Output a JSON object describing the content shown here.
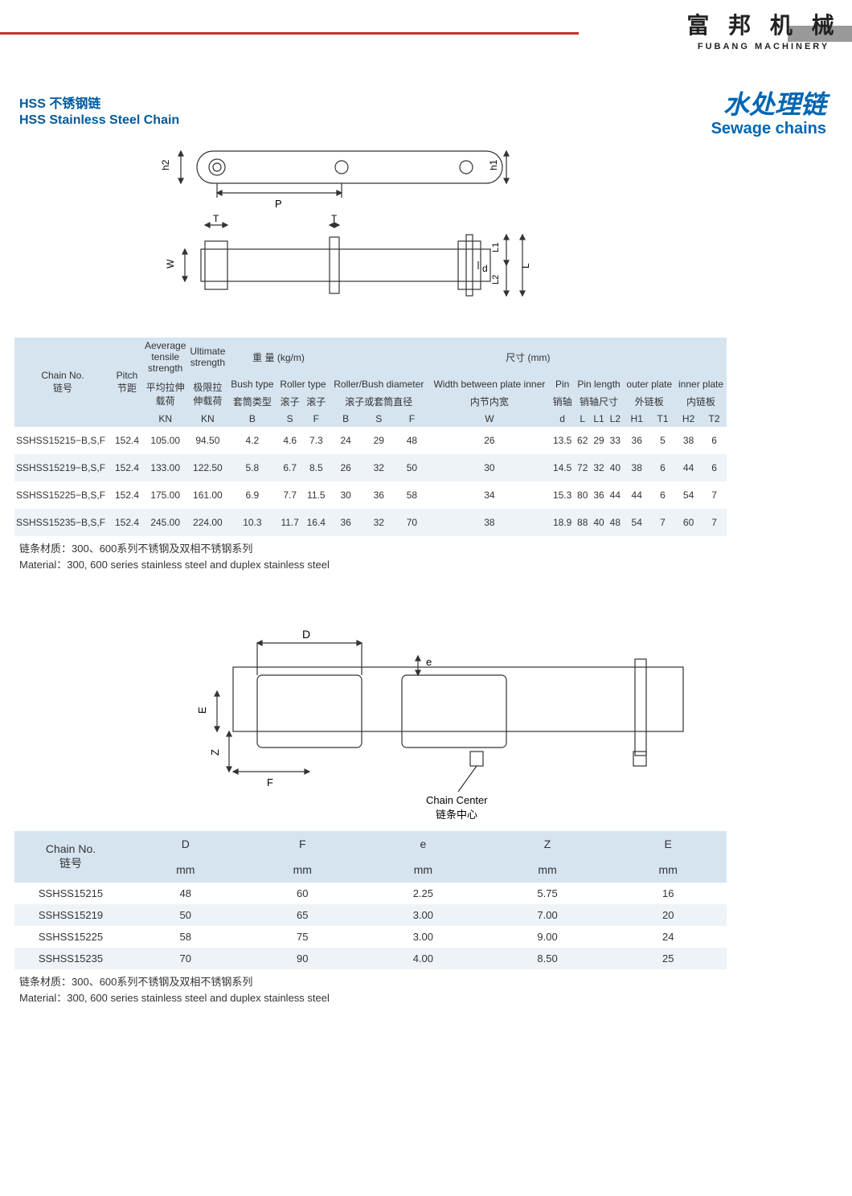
{
  "brand": {
    "cn": "富 邦 机 械",
    "en": "FUBANG MACHINERY"
  },
  "title_left": {
    "cn": "HSS 不锈钢链",
    "en": "HSS Stainless Steel Chain"
  },
  "title_right": {
    "cn": "水处理链",
    "en": "Sewage chains"
  },
  "diagram1": {
    "labels": {
      "h2": "h2",
      "h1": "h1",
      "P": "P",
      "T": "T",
      "T2": "T",
      "W": "W",
      "d": "d",
      "L": "L",
      "L1": "L1",
      "L2": "L2"
    },
    "colors": {
      "stroke": "#333333",
      "fill": "#ffffff"
    }
  },
  "diagram2": {
    "labels": {
      "D": "D",
      "e": "e",
      "E": "E",
      "Z": "Z",
      "F": "F",
      "center_en": "Chain Center",
      "center_cn": "链条中心"
    },
    "colors": {
      "stroke": "#333333",
      "fill": "#ffffff"
    }
  },
  "table1": {
    "header": {
      "chain_no": "Chain No.",
      "chain_no_cn": "链号",
      "pitch": "Pitch",
      "pitch_cn": "节距",
      "avg_ts": "Aeverage tensile strength",
      "ult_ts": "Ultimate strength",
      "avg_cn": "平均拉伸载荷",
      "ult_cn": "极限拉伸载荷",
      "weight": "重 量  (kg/m)",
      "bush": "Bush type",
      "bush_cn": "套筒类型",
      "roller": "Roller type",
      "roller_cn1": "滚子",
      "roller_cn2": "滚子",
      "dim": "尺寸  (mm)",
      "rbd": "Roller/Bush diameter",
      "rbd_cn": "滚子或套筒直径",
      "wbpi": "Width between plate inner",
      "wbpi_cn": "内节内宽",
      "pin": "Pin",
      "pin_cn": "销轴",
      "pinlen": "Pin length",
      "pinlen_cn": "销轴尺寸",
      "outer": "outer plate",
      "outer_cn": "外链板",
      "inner": "inner plate",
      "inner_cn": "内链板",
      "KN": "KN",
      "B": "B",
      "S": "S",
      "F": "F",
      "W": "W",
      "d": "d",
      "L": "L",
      "L1": "L1",
      "L2": "L2",
      "H1": "H1",
      "T1": "T1",
      "H2": "H2",
      "T2": "T2"
    },
    "rows": [
      {
        "no": "SSHSS15215−B,S,F",
        "pitch": "152.4",
        "avg": "105.00",
        "ult": "94.50",
        "wB": "4.2",
        "wS": "4.6",
        "wF": "7.3",
        "dB": "24",
        "dS": "29",
        "dF": "48",
        "W": "26",
        "d": "13.5",
        "L": "62",
        "L1": "29",
        "L2": "33",
        "H1": "36",
        "T1": "5",
        "H2": "38",
        "T2": "6"
      },
      {
        "no": "SSHSS15219−B,S,F",
        "pitch": "152.4",
        "avg": "133.00",
        "ult": "122.50",
        "wB": "5.8",
        "wS": "6.7",
        "wF": "8.5",
        "dB": "26",
        "dS": "32",
        "dF": "50",
        "W": "30",
        "d": "14.5",
        "L": "72",
        "L1": "32",
        "L2": "40",
        "H1": "38",
        "T1": "6",
        "H2": "44",
        "T2": "6"
      },
      {
        "no": "SSHSS15225−B,S,F",
        "pitch": "152.4",
        "avg": "175.00",
        "ult": "161.00",
        "wB": "6.9",
        "wS": "7.7",
        "wF": "11.5",
        "dB": "30",
        "dS": "36",
        "dF": "58",
        "W": "34",
        "d": "15.3",
        "L": "80",
        "L1": "36",
        "L2": "44",
        "H1": "44",
        "T1": "6",
        "H2": "54",
        "T2": "7"
      },
      {
        "no": "SSHSS15235−B,S,F",
        "pitch": "152.4",
        "avg": "245.00",
        "ult": "224.00",
        "wB": "10.3",
        "wS": "11.7",
        "wF": "16.4",
        "dB": "36",
        "dS": "32",
        "dF": "70",
        "W": "38",
        "d": "18.9",
        "L": "88",
        "L1": "40",
        "L2": "48",
        "H1": "54",
        "T1": "7",
        "H2": "60",
        "T2": "7"
      }
    ]
  },
  "note": {
    "cn": "链条材质：300、600系列不锈钢及双相不锈钢系列",
    "en": "Material：300, 600 series stainless steel and duplex stainless steel"
  },
  "table2": {
    "header": {
      "chain_no": "Chain No.",
      "chain_no_cn": "链号",
      "D": "D",
      "F": "F",
      "e": "e",
      "Z": "Z",
      "E": "E",
      "mm": "mm"
    },
    "rows": [
      {
        "no": "SSHSS15215",
        "D": "48",
        "F": "60",
        "e": "2.25",
        "Z": "5.75",
        "E": "16"
      },
      {
        "no": "SSHSS15219",
        "D": "50",
        "F": "65",
        "e": "3.00",
        "Z": "7.00",
        "E": "20"
      },
      {
        "no": "SSHSS15225",
        "D": "58",
        "F": "75",
        "e": "3.00",
        "Z": "9.00",
        "E": "24"
      },
      {
        "no": "SSHSS15235",
        "D": "70",
        "F": "90",
        "e": "4.00",
        "Z": "8.50",
        "E": "25"
      }
    ]
  },
  "colors": {
    "red": "#c9302c",
    "blue": "#0066b3",
    "header_bg": "#d6e4f0",
    "row_alt": "#eef3f8"
  }
}
